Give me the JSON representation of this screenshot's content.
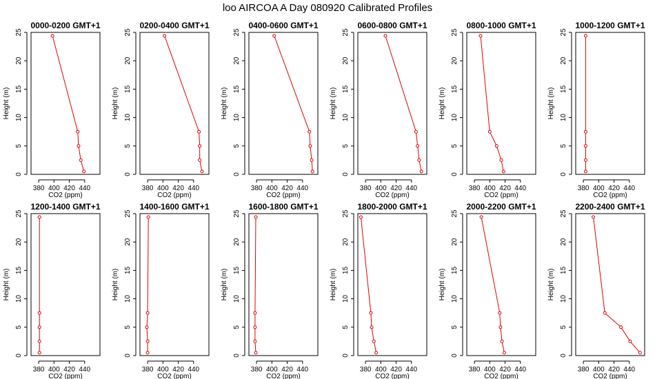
{
  "title": "loo AIRCOA A  Day 080920  Calibrated Profiles",
  "chart_data": [
    {
      "type": "line",
      "title": "0000-0200 GMT+1",
      "xlabel": "CO2 (ppm)",
      "ylabel": "Height (m)",
      "xlim": [
        370,
        460
      ],
      "ylim": [
        0,
        25
      ],
      "xticks": [
        380,
        400,
        420,
        440
      ],
      "yticks": [
        0,
        5,
        10,
        15,
        20,
        25
      ],
      "series": [
        {
          "x": [
            398,
            431,
            432,
            435,
            439
          ],
          "y": [
            24.4,
            7.5,
            5.0,
            2.5,
            0.5
          ]
        }
      ]
    },
    {
      "type": "line",
      "title": "0200-0400 GMT+1",
      "xlabel": "CO2 (ppm)",
      "ylabel": "Height (m)",
      "xlim": [
        370,
        460
      ],
      "ylim": [
        0,
        25
      ],
      "xticks": [
        380,
        400,
        420,
        440
      ],
      "yticks": [
        0,
        5,
        10,
        15,
        20,
        25
      ],
      "series": [
        {
          "x": [
            402,
            447,
            448,
            448,
            451
          ],
          "y": [
            24.4,
            7.5,
            5.0,
            2.5,
            0.5
          ]
        }
      ]
    },
    {
      "type": "line",
      "title": "0400-0600 GMT+1",
      "xlabel": "CO2 (ppm)",
      "ylabel": "Height (m)",
      "xlim": [
        370,
        460
      ],
      "ylim": [
        0,
        25
      ],
      "xticks": [
        380,
        400,
        420,
        440
      ],
      "yticks": [
        0,
        5,
        10,
        15,
        20,
        25
      ],
      "series": [
        {
          "x": [
            403,
            449,
            450,
            452,
            453
          ],
          "y": [
            24.4,
            7.5,
            5.0,
            2.5,
            0.5
          ]
        }
      ]
    },
    {
      "type": "line",
      "title": "0600-0800 GMT+1",
      "xlabel": "CO2 (ppm)",
      "ylabel": "Height (m)",
      "xlim": [
        370,
        460
      ],
      "ylim": [
        0,
        25
      ],
      "xticks": [
        380,
        400,
        420,
        440
      ],
      "yticks": [
        0,
        5,
        10,
        15,
        20,
        25
      ],
      "series": [
        {
          "x": [
            406,
            446,
            448,
            450,
            453
          ],
          "y": [
            24.4,
            7.5,
            5.0,
            2.5,
            0.5
          ]
        }
      ]
    },
    {
      "type": "line",
      "title": "0800-1000 GMT+1",
      "xlabel": "CO2 (ppm)",
      "ylabel": "Height (m)",
      "xlim": [
        370,
        460
      ],
      "ylim": [
        0,
        25
      ],
      "xticks": [
        380,
        400,
        420,
        440
      ],
      "yticks": [
        0,
        5,
        10,
        15,
        20,
        25
      ],
      "series": [
        {
          "x": [
            388,
            400,
            409,
            415,
            418
          ],
          "y": [
            24.4,
            7.5,
            5.0,
            2.5,
            0.5
          ]
        }
      ]
    },
    {
      "type": "line",
      "title": "1000-1200 GMT+1",
      "xlabel": "CO2 (ppm)",
      "ylabel": "Height (m)",
      "xlim": [
        370,
        460
      ],
      "ylim": [
        0,
        25
      ],
      "xticks": [
        380,
        400,
        420,
        440
      ],
      "yticks": [
        0,
        5,
        10,
        15,
        20,
        25
      ],
      "series": [
        {
          "x": [
            383,
            383,
            383,
            383,
            383
          ],
          "y": [
            24.4,
            7.5,
            5.0,
            2.5,
            0.5
          ]
        }
      ]
    },
    {
      "type": "line",
      "title": "1200-1400 GMT+1",
      "xlabel": "CO2 (ppm)",
      "ylabel": "Height (m)",
      "xlim": [
        370,
        460
      ],
      "ylim": [
        0,
        25
      ],
      "xticks": [
        380,
        400,
        420,
        440
      ],
      "yticks": [
        0,
        5,
        10,
        15,
        20,
        25
      ],
      "series": [
        {
          "x": [
            381,
            381,
            381,
            381,
            381
          ],
          "y": [
            24.4,
            7.5,
            5.0,
            2.5,
            0.5
          ]
        }
      ]
    },
    {
      "type": "line",
      "title": "1400-1600 GMT+1",
      "xlabel": "CO2 (ppm)",
      "ylabel": "Height (m)",
      "xlim": [
        370,
        460
      ],
      "ylim": [
        0,
        25
      ],
      "xticks": [
        380,
        400,
        420,
        440
      ],
      "yticks": [
        0,
        5,
        10,
        15,
        20,
        25
      ],
      "series": [
        {
          "x": [
            381,
            380,
            379,
            380,
            380
          ],
          "y": [
            24.4,
            7.5,
            5.0,
            2.5,
            0.5
          ]
        }
      ]
    },
    {
      "type": "line",
      "title": "1600-1800 GMT+1",
      "xlabel": "CO2 (ppm)",
      "ylabel": "Height (m)",
      "xlim": [
        370,
        460
      ],
      "ylim": [
        0,
        25
      ],
      "xticks": [
        380,
        400,
        420,
        440
      ],
      "yticks": [
        0,
        5,
        10,
        15,
        20,
        25
      ],
      "series": [
        {
          "x": [
            379,
            378,
            378,
            378,
            379
          ],
          "y": [
            24.4,
            7.5,
            5.0,
            2.5,
            0.5
          ]
        }
      ]
    },
    {
      "type": "line",
      "title": "1800-2000 GMT+1",
      "xlabel": "CO2 (ppm)",
      "ylabel": "Height (m)",
      "xlim": [
        370,
        460
      ],
      "ylim": [
        0,
        25
      ],
      "xticks": [
        380,
        400,
        420,
        440
      ],
      "yticks": [
        0,
        5,
        10,
        15,
        20,
        25
      ],
      "series": [
        {
          "x": [
            374,
            387,
            388,
            391,
            394
          ],
          "y": [
            24.4,
            7.5,
            5.0,
            2.5,
            0.5
          ]
        }
      ]
    },
    {
      "type": "line",
      "title": "2000-2200 GMT+1",
      "xlabel": "CO2 (ppm)",
      "ylabel": "Height (m)",
      "xlim": [
        370,
        460
      ],
      "ylim": [
        0,
        25
      ],
      "xticks": [
        380,
        400,
        420,
        440
      ],
      "yticks": [
        0,
        5,
        10,
        15,
        20,
        25
      ],
      "series": [
        {
          "x": [
            389,
            413,
            414,
            416,
            419
          ],
          "y": [
            24.4,
            7.5,
            5.0,
            2.5,
            0.5
          ]
        }
      ]
    },
    {
      "type": "line",
      "title": "2200-2400 GMT+1",
      "xlabel": "CO2 (ppm)",
      "ylabel": "Height (m)",
      "xlim": [
        370,
        460
      ],
      "ylim": [
        0,
        25
      ],
      "xticks": [
        380,
        400,
        420,
        440
      ],
      "yticks": [
        0,
        5,
        10,
        15,
        20,
        25
      ],
      "series": [
        {
          "x": [
            393,
            408,
            429,
            441,
            454
          ],
          "y": [
            24.4,
            7.5,
            5.0,
            2.5,
            0.5
          ]
        }
      ]
    }
  ]
}
